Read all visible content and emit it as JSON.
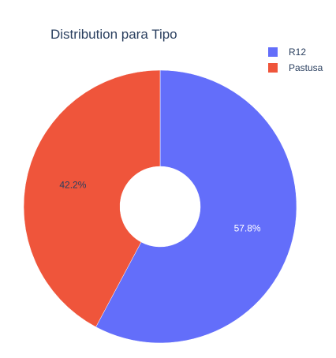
{
  "chart_data": {
    "type": "pie",
    "title": "Distribution para Tipo",
    "hole": true,
    "legend_position": "top-right",
    "slices": [
      {
        "label": "R12",
        "percent": 57.8,
        "text": "57.8%",
        "color": "#636efa",
        "text_color": "#ffffff"
      },
      {
        "label": "Pastusa",
        "percent": 42.2,
        "text": "42.2%",
        "color": "#ef553b",
        "text_color": "#2a3f5f"
      }
    ]
  }
}
